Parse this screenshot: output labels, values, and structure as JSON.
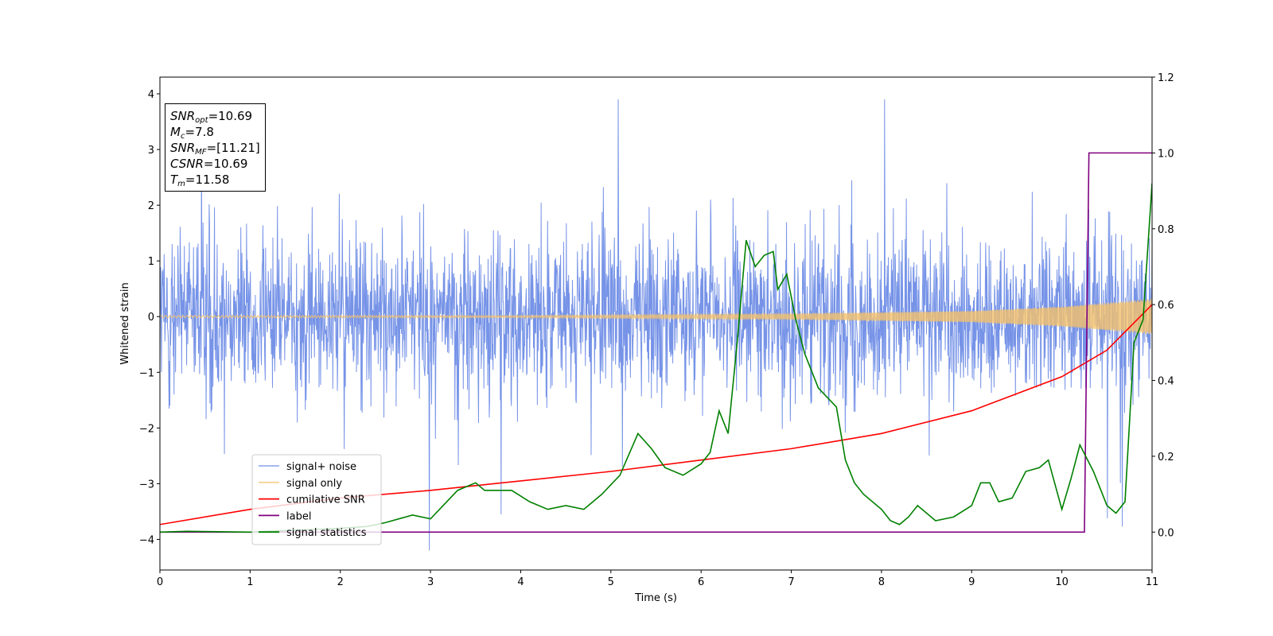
{
  "chart_data": {
    "type": "line",
    "xlabel": "Time (s)",
    "ylabel": "Whitened strain",
    "xlim": [
      0,
      11
    ],
    "ylim_left": [
      -4.55,
      4.3
    ],
    "ylim_right": [
      -0.1,
      1.2
    ],
    "x_ticks": [
      "0",
      "1",
      "2",
      "3",
      "4",
      "5",
      "6",
      "7",
      "8",
      "9",
      "10",
      "11"
    ],
    "y_ticks_left": [
      "−4",
      "−3",
      "−2",
      "−1",
      "0",
      "1",
      "2",
      "3",
      "4"
    ],
    "y_ticks_right": [
      "0.0",
      "0.2",
      "0.4",
      "0.6",
      "0.8",
      "1.0",
      "1.2"
    ],
    "legend_position": "lower-left",
    "series": [
      {
        "name": "signal+ noise",
        "color": "#6f8de6",
        "axis": "left",
        "style": "noise band roughly ±1.5 with spikes to ±4"
      },
      {
        "name": "signal only",
        "color": "#f5c26b",
        "axis": "left",
        "amplitude": {
          "x": [
            0,
            4,
            7,
            9,
            10,
            11
          ],
          "y": [
            0.02,
            0.02,
            0.05,
            0.1,
            0.18,
            0.32
          ]
        }
      },
      {
        "name": "cumilative SNR",
        "color": "#ff0000",
        "axis": "right",
        "x": [
          0,
          1,
          2,
          3,
          4,
          5,
          6,
          7,
          8,
          9,
          10,
          10.5,
          11
        ],
        "y": [
          0.02,
          0.06,
          0.09,
          0.11,
          0.135,
          0.16,
          0.19,
          0.22,
          0.26,
          0.32,
          0.41,
          0.48,
          0.6
        ]
      },
      {
        "name": "label",
        "color": "#800080",
        "axis": "right",
        "x": [
          0,
          10.25,
          10.3,
          11
        ],
        "y": [
          0,
          0,
          1,
          1
        ]
      },
      {
        "name": "signal statistics",
        "color": "#008000",
        "axis": "right",
        "x": [
          0,
          0.3,
          1,
          2,
          2.3,
          2.5,
          2.8,
          3.0,
          3.3,
          3.5,
          3.6,
          3.7,
          3.9,
          4.1,
          4.3,
          4.5,
          4.7,
          4.9,
          5.1,
          5.3,
          5.45,
          5.6,
          5.8,
          6.0,
          6.1,
          6.2,
          6.3,
          6.4,
          6.5,
          6.6,
          6.7,
          6.8,
          6.85,
          6.95,
          7.05,
          7.15,
          7.3,
          7.5,
          7.6,
          7.7,
          7.8,
          8.0,
          8.1,
          8.2,
          8.3,
          8.4,
          8.6,
          8.8,
          9.0,
          9.1,
          9.2,
          9.3,
          9.45,
          9.6,
          9.75,
          9.85,
          10.0,
          10.1,
          10.2,
          10.35,
          10.5,
          10.6,
          10.7,
          10.8,
          10.9,
          11.0
        ],
        "y": [
          0.0,
          0.002,
          0.0,
          0.01,
          0.015,
          0.025,
          0.045,
          0.035,
          0.11,
          0.13,
          0.11,
          0.11,
          0.11,
          0.08,
          0.06,
          0.07,
          0.06,
          0.1,
          0.15,
          0.26,
          0.22,
          0.17,
          0.15,
          0.18,
          0.21,
          0.32,
          0.26,
          0.5,
          0.77,
          0.7,
          0.73,
          0.74,
          0.64,
          0.68,
          0.56,
          0.47,
          0.38,
          0.33,
          0.19,
          0.13,
          0.1,
          0.06,
          0.03,
          0.02,
          0.04,
          0.07,
          0.03,
          0.04,
          0.07,
          0.13,
          0.13,
          0.08,
          0.09,
          0.16,
          0.17,
          0.19,
          0.06,
          0.14,
          0.23,
          0.16,
          0.07,
          0.05,
          0.08,
          0.5,
          0.56,
          0.92
        ]
      }
    ]
  },
  "infobox": {
    "snr_opt_value": "=10.69",
    "mc_value": "=7.8",
    "snr_mf_value": "=[11.21]",
    "csnr_value": "=10.69",
    "tm_value": "=11.58"
  }
}
